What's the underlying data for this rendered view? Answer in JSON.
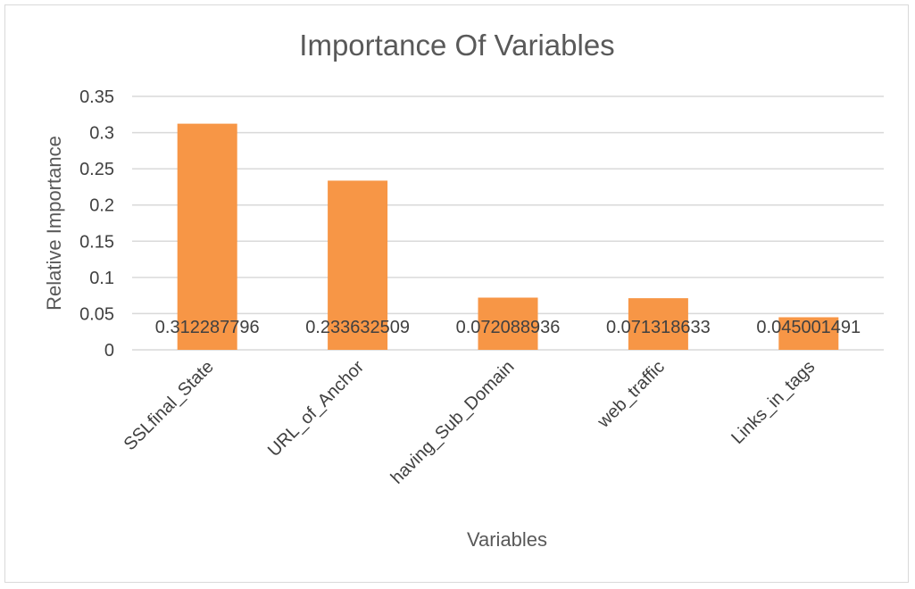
{
  "chart_data": {
    "type": "bar",
    "title": "Importance Of Variables",
    "xlabel": "Variables",
    "ylabel": "Relative Importance",
    "categories": [
      "SSLfinal_State",
      "URL_of_Anchor",
      "having_Sub_Domain",
      "web_traffic",
      "Links_in_tags"
    ],
    "values": [
      0.312287796,
      0.233632509,
      0.072088936,
      0.071318633,
      0.045001491
    ],
    "data_labels": [
      "0.312287796",
      "0.233632509",
      "0.072088936",
      "0.071318633",
      "0.045001491"
    ],
    "ylim": [
      0,
      0.35
    ],
    "yticks": [
      "0",
      "0.05",
      "0.1",
      "0.15",
      "0.2",
      "0.25",
      "0.3",
      "0.35"
    ],
    "grid": true,
    "legend": "none",
    "colors": {
      "bar": "#f79646",
      "grid": "#d9d9d9",
      "text": "#404040"
    }
  }
}
